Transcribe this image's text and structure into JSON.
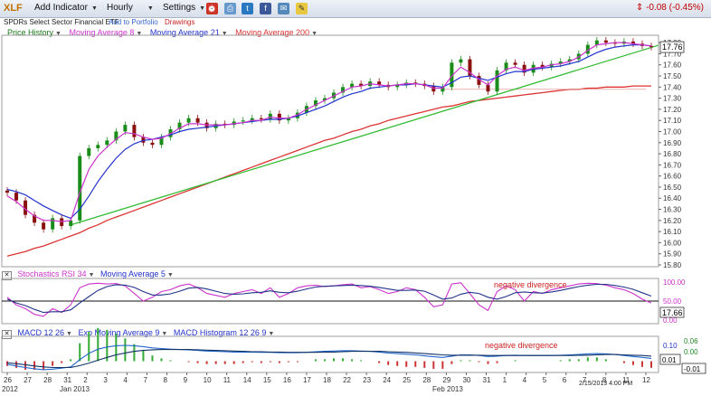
{
  "toolbar": {
    "ticker": "XLF",
    "add_indicator": "Add Indicator",
    "interval": "Hourly",
    "settings": "Settings",
    "change": "-0.08 (-0.45%)",
    "change_icon": "arrows-updown-icon"
  },
  "subbar": {
    "name": "SPDRs Select Sector Financial ETF",
    "add_portfolio": "Add to Portfolio",
    "drawings": "Drawings"
  },
  "colors": {
    "price_up": "#1a8c1a",
    "price_down": "#8b1010",
    "ma8": "#cc33cc",
    "ma21": "#2233cc",
    "ma200": "#dd3333",
    "trend": "#33bb33",
    "macd_hist_pos": "#33aa33",
    "macd_hist_neg": "#cc3333"
  },
  "price_panel": {
    "legend": {
      "price": "Price History",
      "ma8": "Moving Average 8",
      "ma21": "Moving Average 21",
      "ma200": "Moving Average 200"
    },
    "last_price": "17.76",
    "y_ticks": [
      "17.80",
      "17.70",
      "17.60",
      "17.50",
      "17.40",
      "17.30",
      "17.20",
      "17.10",
      "17.00",
      "16.90",
      "16.80",
      "16.70",
      "16.60",
      "16.50",
      "16.40",
      "16.30",
      "16.20",
      "16.10",
      "16.00",
      "15.90",
      "15.80"
    ]
  },
  "stoch_panel": {
    "legend": {
      "main": "Stochastics RSI 34",
      "ma": "Moving Average 5"
    },
    "annotation": "negative divergence",
    "y_ticks": [
      "100.00",
      "50.00",
      "0.00"
    ],
    "last_value": "17.66"
  },
  "macd_panel": {
    "legend": {
      "macd": "MACD 12 26",
      "ema": "Exp Moving Average 9",
      "hist": "MACD Histogram 12 26 9"
    },
    "annotation": "negative divergence",
    "y_ticks": [
      "0.10",
      "0.06",
      "0.00",
      "-0.01"
    ],
    "last_value": "0.01",
    "last_value_2": "-0.01"
  },
  "x_axis": {
    "days": [
      "26",
      "27",
      "28",
      "31",
      "2",
      "3",
      "4",
      "7",
      "8",
      "9",
      "10",
      "11",
      "14",
      "15",
      "16",
      "17",
      "18",
      "22",
      "23",
      "24",
      "25",
      "28",
      "29",
      "30",
      "31",
      "1",
      "4",
      "5",
      "6",
      "7",
      "8",
      "11",
      "12"
    ],
    "months": [
      "2012",
      "Jan 2013",
      "Feb 2013"
    ],
    "timestamp": "2/15/2013 4:00 PM"
  },
  "chart_data": {
    "type": "line",
    "title": "XLF",
    "ylim": [
      15.8,
      17.85
    ],
    "close": [
      16.45,
      16.38,
      16.25,
      16.18,
      16.12,
      16.22,
      16.15,
      16.2,
      16.78,
      16.85,
      16.88,
      16.92,
      17.0,
      17.06,
      16.95,
      16.9,
      16.88,
      16.95,
      17.02,
      17.08,
      17.12,
      17.08,
      17.03,
      17.07,
      17.06,
      17.09,
      17.1,
      17.12,
      17.11,
      17.16,
      17.1,
      17.12,
      17.17,
      17.23,
      17.28,
      17.3,
      17.35,
      17.4,
      17.43,
      17.41,
      17.45,
      17.42,
      17.4,
      17.42,
      17.44,
      17.43,
      17.41,
      17.36,
      17.4,
      17.62,
      17.65,
      17.5,
      17.42,
      17.36,
      17.55,
      17.62,
      17.6,
      17.53,
      17.6,
      17.58,
      17.61,
      17.63,
      17.65,
      17.7,
      17.78,
      17.82,
      17.8,
      17.79,
      17.81,
      17.79,
      17.77,
      17.76
    ],
    "series": [
      {
        "name": "Moving Average 8",
        "values": [
          16.42,
          16.37,
          16.3,
          16.24,
          16.2,
          16.2,
          16.19,
          16.2,
          16.45,
          16.66,
          16.78,
          16.86,
          16.93,
          16.99,
          16.98,
          16.95,
          16.93,
          16.94,
          16.98,
          17.03,
          17.07,
          17.07,
          17.06,
          17.06,
          17.06,
          17.07,
          17.08,
          17.1,
          17.1,
          17.13,
          17.12,
          17.12,
          17.15,
          17.2,
          17.24,
          17.28,
          17.32,
          17.36,
          17.4,
          17.41,
          17.43,
          17.42,
          17.41,
          17.42,
          17.43,
          17.43,
          17.42,
          17.39,
          17.39,
          17.5,
          17.58,
          17.53,
          17.47,
          17.42,
          17.5,
          17.56,
          17.58,
          17.55,
          17.57,
          17.58,
          17.6,
          17.61,
          17.63,
          17.67,
          17.73,
          17.78,
          17.79,
          17.8,
          17.8,
          17.79,
          17.78,
          17.77
        ]
      },
      {
        "name": "Moving Average 21",
        "values": [
          16.48,
          16.46,
          16.43,
          16.38,
          16.33,
          16.29,
          16.25,
          16.22,
          16.3,
          16.42,
          16.55,
          16.66,
          16.76,
          16.84,
          16.89,
          16.92,
          16.93,
          16.95,
          16.97,
          17.0,
          17.02,
          17.03,
          17.04,
          17.05,
          17.06,
          17.07,
          17.08,
          17.09,
          17.1,
          17.11,
          17.11,
          17.12,
          17.14,
          17.17,
          17.2,
          17.23,
          17.27,
          17.31,
          17.34,
          17.36,
          17.39,
          17.4,
          17.41,
          17.42,
          17.42,
          17.43,
          17.42,
          17.41,
          17.4,
          17.44,
          17.49,
          17.5,
          17.48,
          17.46,
          17.49,
          17.52,
          17.54,
          17.54,
          17.56,
          17.57,
          17.58,
          17.59,
          17.61,
          17.63,
          17.67,
          17.71,
          17.74,
          17.76,
          17.77,
          17.78,
          17.78,
          17.77
        ]
      },
      {
        "name": "Moving Average 200",
        "values": [
          15.88,
          15.9,
          15.92,
          15.95,
          15.97,
          16.0,
          16.03,
          16.06,
          16.09,
          16.13,
          16.16,
          16.2,
          16.23,
          16.26,
          16.29,
          16.32,
          16.35,
          16.38,
          16.41,
          16.44,
          16.47,
          16.5,
          16.53,
          16.56,
          16.59,
          16.62,
          16.65,
          16.68,
          16.71,
          16.74,
          16.77,
          16.8,
          16.83,
          16.86,
          16.89,
          16.92,
          16.94,
          16.97,
          17.0,
          17.02,
          17.05,
          17.07,
          17.1,
          17.12,
          17.14,
          17.16,
          17.18,
          17.2,
          17.22,
          17.23,
          17.25,
          17.27,
          17.28,
          17.29,
          17.3,
          17.31,
          17.32,
          17.33,
          17.34,
          17.35,
          17.36,
          17.37,
          17.38,
          17.38,
          17.39,
          17.39,
          17.4,
          17.4,
          17.4,
          17.41,
          17.41,
          17.41
        ]
      }
    ],
    "stoch_rsi": {
      "ylim": [
        0,
        100
      ],
      "main": [
        60,
        40,
        30,
        15,
        10,
        30,
        20,
        40,
        85,
        95,
        97,
        95,
        96,
        90,
        70,
        50,
        60,
        75,
        80,
        90,
        95,
        85,
        70,
        65,
        60,
        70,
        75,
        80,
        70,
        85,
        60,
        70,
        85,
        90,
        92,
        88,
        90,
        93,
        95,
        85,
        88,
        80,
        70,
        75,
        85,
        80,
        60,
        35,
        40,
        95,
        98,
        70,
        40,
        25,
        75,
        90,
        80,
        50,
        75,
        70,
        80,
        85,
        90,
        95,
        97,
        96,
        92,
        85,
        80,
        70,
        55,
        45
      ],
      "ma": [
        55,
        45,
        38,
        28,
        20,
        22,
        22,
        27,
        45,
        62,
        78,
        88,
        93,
        92,
        86,
        75,
        66,
        66,
        69,
        76,
        84,
        86,
        82,
        76,
        70,
        68,
        69,
        72,
        73,
        77,
        73,
        72,
        76,
        82,
        87,
        89,
        90,
        91,
        92,
        91,
        89,
        86,
        82,
        78,
        78,
        79,
        76,
        66,
        55,
        58,
        68,
        73,
        70,
        60,
        55,
        62,
        72,
        74,
        72,
        71,
        74,
        78,
        83,
        88,
        92,
        94,
        94,
        91,
        87,
        81,
        72,
        63
      ]
    },
    "macd": {
      "ylim": [
        -0.03,
        0.07
      ],
      "macd": [
        -0.01,
        -0.015,
        -0.02,
        -0.024,
        -0.027,
        -0.025,
        -0.022,
        -0.018,
        0.005,
        0.025,
        0.038,
        0.045,
        0.049,
        0.05,
        0.049,
        0.046,
        0.042,
        0.04,
        0.038,
        0.037,
        0.036,
        0.034,
        0.032,
        0.031,
        0.03,
        0.029,
        0.029,
        0.029,
        0.028,
        0.028,
        0.027,
        0.027,
        0.027,
        0.028,
        0.03,
        0.031,
        0.032,
        0.033,
        0.033,
        0.032,
        0.031,
        0.029,
        0.026,
        0.024,
        0.022,
        0.02,
        0.017,
        0.014,
        0.012,
        0.016,
        0.02,
        0.02,
        0.018,
        0.015,
        0.016,
        0.018,
        0.019,
        0.018,
        0.018,
        0.018,
        0.018,
        0.019,
        0.02,
        0.021,
        0.023,
        0.024,
        0.023,
        0.021,
        0.018,
        0.015,
        0.012,
        0.009
      ],
      "signal": [
        -0.005,
        -0.008,
        -0.011,
        -0.015,
        -0.018,
        -0.02,
        -0.02,
        -0.02,
        -0.014,
        -0.006,
        0.003,
        0.012,
        0.02,
        0.026,
        0.031,
        0.034,
        0.036,
        0.037,
        0.037,
        0.037,
        0.037,
        0.036,
        0.035,
        0.034,
        0.033,
        0.032,
        0.031,
        0.03,
        0.03,
        0.029,
        0.029,
        0.028,
        0.028,
        0.028,
        0.028,
        0.029,
        0.029,
        0.03,
        0.031,
        0.031,
        0.031,
        0.031,
        0.03,
        0.029,
        0.028,
        0.026,
        0.024,
        0.022,
        0.02,
        0.019,
        0.019,
        0.019,
        0.019,
        0.018,
        0.018,
        0.018,
        0.018,
        0.018,
        0.018,
        0.018,
        0.018,
        0.018,
        0.018,
        0.019,
        0.019,
        0.02,
        0.021,
        0.021,
        0.02,
        0.019,
        0.018,
        0.016
      ]
    },
    "trendlines": [
      {
        "from": [
          7,
          16.16
        ],
        "to": [
          71,
          17.76
        ]
      }
    ]
  }
}
